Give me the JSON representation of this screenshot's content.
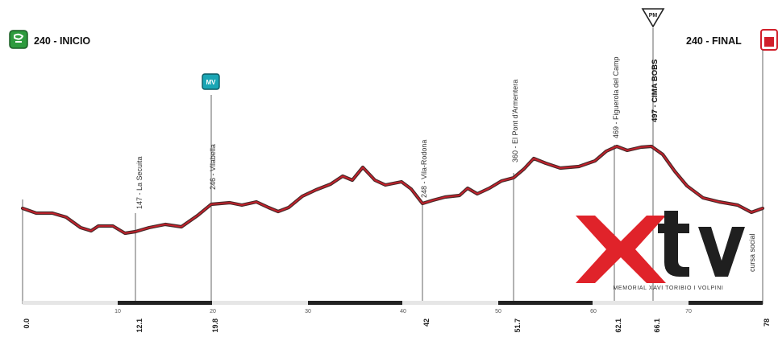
{
  "header": {
    "start_label": "240 - INICIO",
    "finish_label": "240 - FINAL",
    "start_badge": "flag-icon",
    "finish_badge": "finish-icon"
  },
  "markers": [
    {
      "id": "mv",
      "text": "MV"
    },
    {
      "id": "pm",
      "text": "PM"
    }
  ],
  "waypoints": [
    {
      "km": "12.1",
      "label": "147 - La Secuita",
      "bold": false
    },
    {
      "km": "19.8",
      "label": "246 - Vilabella",
      "bold": false
    },
    {
      "km": "42",
      "label": "248 - Vila-Rodona",
      "bold": false
    },
    {
      "km": "51.7",
      "label": "360 - El Pont d'Armentera",
      "bold": false
    },
    {
      "km": "62.1",
      "label": "469 - Figuerola del Camp",
      "bold": false
    },
    {
      "km": "66.1",
      "label": "497 - CIMA BOBS",
      "bold": true
    }
  ],
  "endpoints": {
    "start_km": "0.0",
    "finish_km": "78"
  },
  "scale_ticks": [
    "10",
    "20",
    "30",
    "40",
    "50",
    "60",
    "70"
  ],
  "logo": {
    "text": "xtv",
    "tagline": "cursa social",
    "footer": "MEMORIAL XAVI TORIBIO I VOLPINI"
  },
  "colors": {
    "profile_outer": "#4a2a2a",
    "profile_inner": "#c8202b",
    "logo_x": "#e0232a",
    "logo_text": "#1f1f1f"
  }
}
